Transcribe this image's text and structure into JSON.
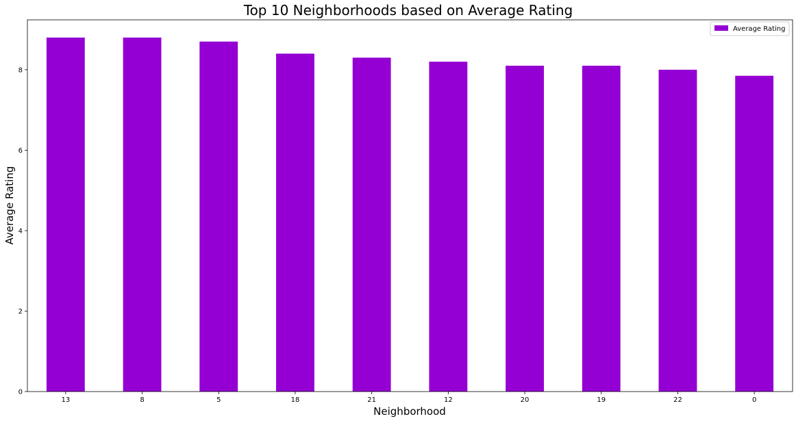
{
  "chart_data": {
    "type": "bar",
    "title": "Top 10 Neighborhoods based on Average Rating",
    "xlabel": "Neighborhood",
    "ylabel": "Average Rating",
    "categories": [
      "13",
      "8",
      "5",
      "18",
      "21",
      "12",
      "20",
      "19",
      "22",
      "0"
    ],
    "series": [
      {
        "name": "Average Rating",
        "values": [
          8.8,
          8.8,
          8.7,
          8.4,
          8.3,
          8.2,
          8.1,
          8.1,
          8.0,
          7.85
        ],
        "color": "#9400d3"
      }
    ],
    "ylim": [
      0,
      9.24
    ],
    "yticks": [
      0,
      2,
      4,
      6,
      8
    ],
    "grid": false,
    "legend_position": "top-right"
  }
}
